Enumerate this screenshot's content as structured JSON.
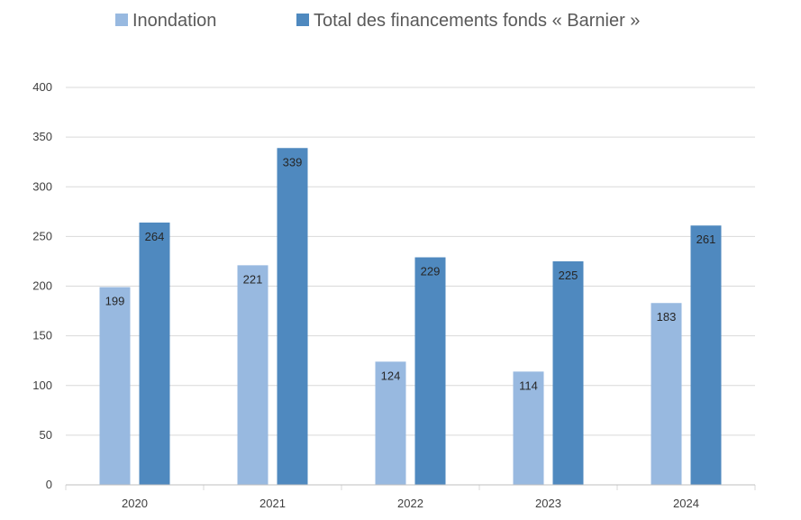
{
  "chart_data": {
    "type": "bar",
    "categories": [
      "2020",
      "2021",
      "2022",
      "2023",
      "2024"
    ],
    "series": [
      {
        "name": "Inondation",
        "color": "#98B9E0",
        "values": [
          199,
          221,
          124,
          114,
          183
        ]
      },
      {
        "name": "Total des financements fonds « Barnier »",
        "color": "#4F89BF",
        "values": [
          264,
          339,
          229,
          225,
          261
        ]
      }
    ],
    "title": "",
    "xlabel": "",
    "ylabel": "",
    "ylim": [
      0,
      400
    ],
    "yticks": [
      0,
      50,
      100,
      150,
      200,
      250,
      300,
      350,
      400
    ],
    "grid": true,
    "legend": "top",
    "gridline_color": "#D9D9D9"
  }
}
